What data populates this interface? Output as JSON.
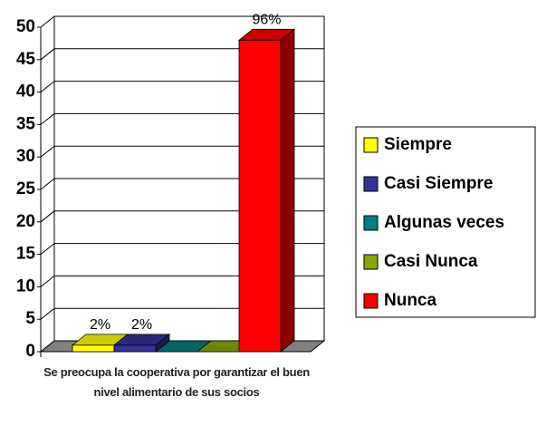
{
  "chart_data": {
    "type": "bar3d",
    "categories": [
      "Se preocupa la cooperativa por garantizar el buen nivel alimentario de sus socios"
    ],
    "series": [
      {
        "name": "Siempre",
        "color": "#ffff00",
        "values": [
          1
        ],
        "value_labels": [
          "2%"
        ]
      },
      {
        "name": "Casi Siempre",
        "color": "#333399",
        "values": [
          1
        ],
        "value_labels": [
          "2%"
        ]
      },
      {
        "name": "Algunas veces",
        "color": "#008080",
        "values": [
          0
        ],
        "value_labels": [
          null
        ]
      },
      {
        "name": "Casi Nunca",
        "color": "#88aa00",
        "values": [
          0
        ],
        "value_labels": [
          null
        ]
      },
      {
        "name": "Nunca",
        "color": "#ff0000",
        "values": [
          48
        ],
        "value_labels": [
          "96%"
        ]
      }
    ],
    "ylim": [
      0,
      50
    ],
    "yticks": [
      0,
      5,
      10,
      15,
      20,
      25,
      30,
      35,
      40,
      45,
      50
    ],
    "grid": true,
    "legend": "right"
  }
}
